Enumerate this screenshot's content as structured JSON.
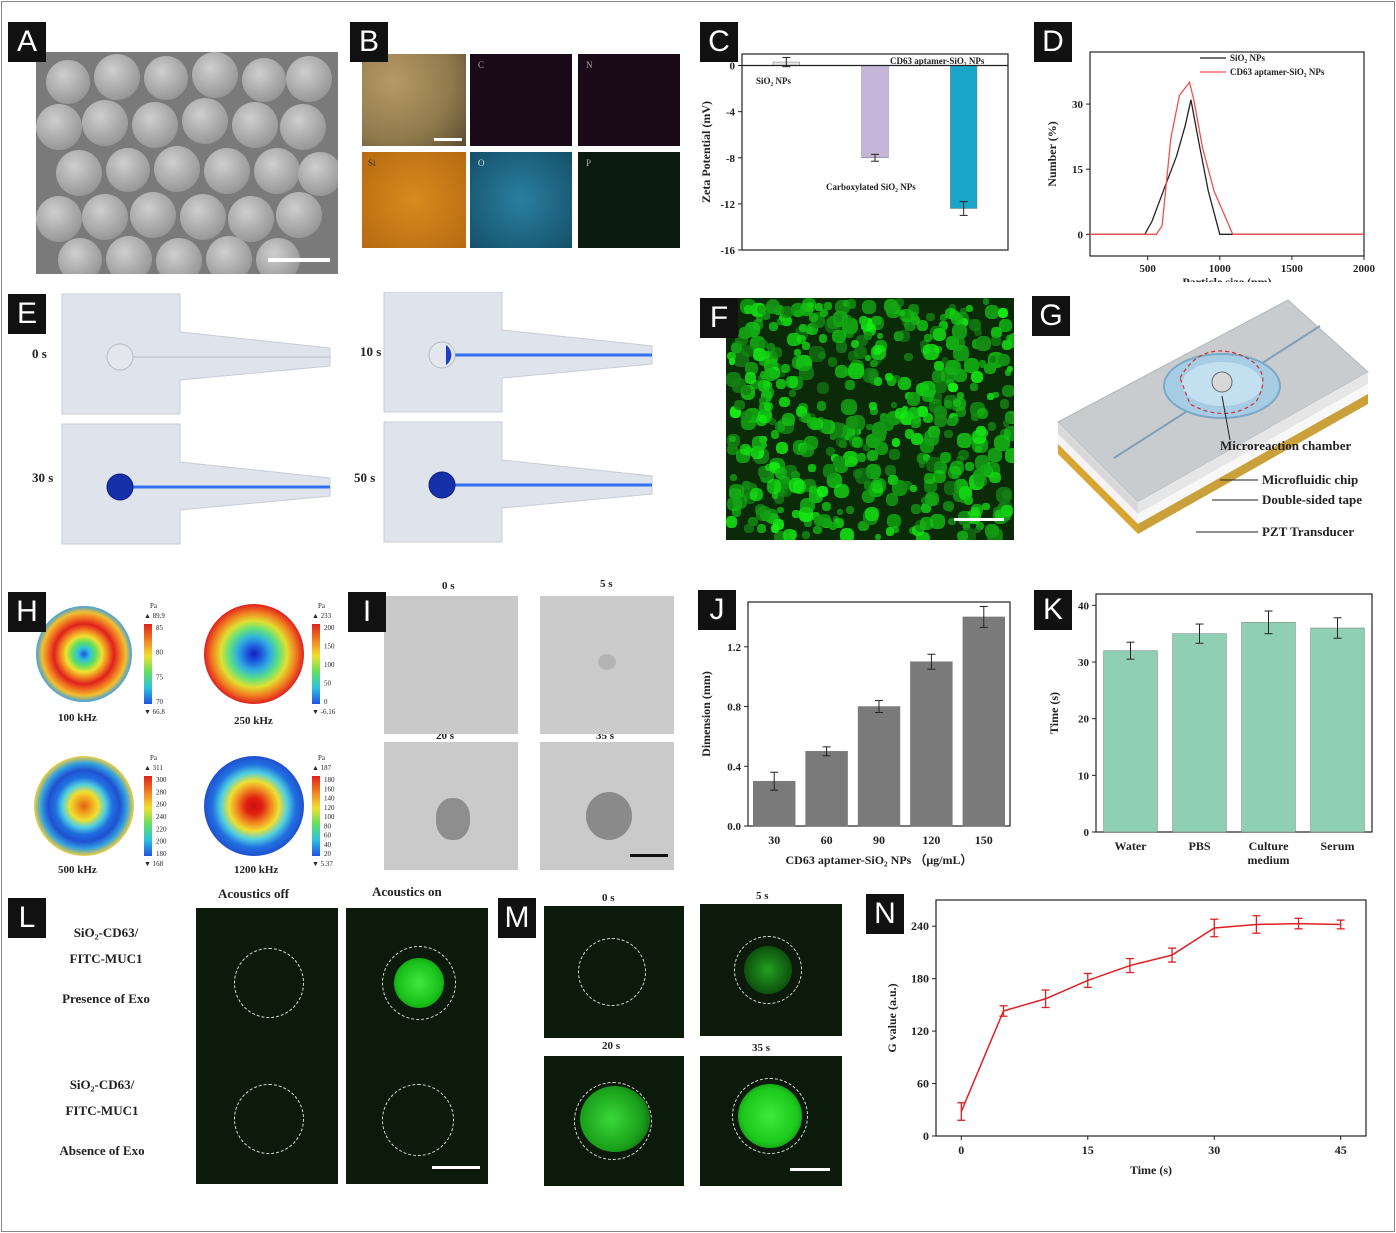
{
  "labels": {
    "A": "A",
    "B": "B",
    "C": "C",
    "D": "D",
    "E": "E",
    "F": "F",
    "G": "G",
    "H": "H",
    "I": "I",
    "J": "J",
    "K": "K",
    "L": "L",
    "M": "M",
    "N": "N"
  },
  "panelB": {
    "tiles": [
      "C",
      "N",
      "Si",
      "O",
      "P"
    ]
  },
  "panelE": {
    "times": [
      "0 s",
      "10 s",
      "30 s",
      "50 s"
    ]
  },
  "panelG": {
    "labels": [
      "Microreaction chamber",
      "Microfluidic chip",
      "Double-sided tape",
      "PZT Transducer"
    ]
  },
  "panelH": {
    "freqs": [
      "100 kHz",
      "250 kHz",
      "500 kHz",
      "1200 kHz"
    ],
    "unit": "Pa",
    "scales": [
      {
        "max": "89.9",
        "ticks": [
          "85",
          "80",
          "75",
          "70"
        ],
        "min": "66.8"
      },
      {
        "max": "233",
        "ticks": [
          "200",
          "150",
          "100",
          "50",
          "0"
        ],
        "min": "-6.16"
      },
      {
        "max": "311",
        "ticks": [
          "300",
          "280",
          "260",
          "240",
          "220",
          "200",
          "180"
        ],
        "min": "168"
      },
      {
        "max": "187",
        "ticks": [
          "180",
          "160",
          "140",
          "120",
          "100",
          "80",
          "60",
          "40",
          "20"
        ],
        "min": "5.37"
      }
    ]
  },
  "panelI": {
    "times": [
      "0 s",
      "5 s",
      "20 s",
      "35 s"
    ]
  },
  "panelL": {
    "col1": "Acoustics off",
    "col2": "Acoustics on",
    "row1": [
      "SiO₂-CD63/",
      "FITC-MUC1",
      "Presence of Exo"
    ],
    "row2": [
      "SiO₂-CD63/",
      "FITC-MUC1",
      "Absence of Exo"
    ]
  },
  "panelM": {
    "times": [
      "0 s",
      "5 s",
      "20 s",
      "35 s"
    ]
  },
  "chart_data": [
    {
      "id": "C",
      "type": "bar",
      "categories": [
        "SiO₂ NPs",
        "Carboxylated SiO₂ NPs",
        "CD63 aptamer-SiO₂ NPs"
      ],
      "values": [
        0.3,
        -8.0,
        -12.4
      ],
      "errors": [
        0.4,
        0.3,
        0.6
      ],
      "ylabel": "Zeta Potential (mV)",
      "ylim": [
        -16,
        1
      ],
      "yticks": [
        "0",
        "-4",
        "-8",
        "-12",
        "-16"
      ],
      "colors": [
        "#e8e8e8",
        "#c7b5d9",
        "#1aa6c8"
      ]
    },
    {
      "id": "D",
      "type": "line",
      "xlabel": "Particle size (nm)",
      "ylabel": "Number (%)",
      "xlim": [
        100,
        2000
      ],
      "ylim": [
        -5,
        42
      ],
      "xticks": [
        "500",
        "1000",
        "1500",
        "2000"
      ],
      "yticks": [
        "0",
        "15",
        "30"
      ],
      "series": [
        {
          "name": "SiO₂ NPs",
          "color": "#222222",
          "x": [
            100,
            480,
            530,
            620,
            700,
            760,
            800,
            850,
            920,
            1000,
            2000
          ],
          "y": [
            0,
            0,
            3,
            11,
            18,
            25,
            31,
            22,
            10,
            0,
            0
          ]
        },
        {
          "name": "CD63 aptamer-SiO₂ NPs",
          "color": "#f05050",
          "x": [
            100,
            560,
            600,
            660,
            720,
            790,
            820,
            880,
            960,
            1090,
            2000
          ],
          "y": [
            0,
            0,
            2,
            22,
            32,
            35,
            31,
            20,
            10,
            0,
            0
          ]
        }
      ]
    },
    {
      "id": "J",
      "type": "bar",
      "categories": [
        "30",
        "60",
        "90",
        "120",
        "150"
      ],
      "values": [
        0.3,
        0.5,
        0.8,
        1.1,
        1.4
      ],
      "errors": [
        0.06,
        0.03,
        0.04,
        0.05,
        0.07
      ],
      "xlabel": "CD63 aptamer-SiO₂ NPs （μg/mL）",
      "ylabel": "Dimension (mm)",
      "ylim": [
        0,
        1.5
      ],
      "yticks": [
        "0.0",
        "0.4",
        "0.8",
        "1.2"
      ],
      "color": "#7a7a7a"
    },
    {
      "id": "K",
      "type": "bar",
      "categories": [
        "Water",
        "PBS",
        "Culture medium",
        "Serum"
      ],
      "values": [
        32,
        35,
        37,
        36
      ],
      "errors": [
        1.5,
        1.7,
        2.0,
        1.8
      ],
      "ylabel": "Time (s)",
      "ylim": [
        0,
        42
      ],
      "yticks": [
        "0",
        "10",
        "20",
        "30",
        "40"
      ],
      "color": "#8fd0b4"
    },
    {
      "id": "N",
      "type": "line",
      "xlabel": "Time (s)",
      "ylabel": "G value (a.u.)",
      "xlim": [
        -3,
        48
      ],
      "ylim": [
        0,
        270
      ],
      "xticks": [
        "0",
        "15",
        "30",
        "45"
      ],
      "yticks": [
        "0",
        "60",
        "120",
        "180",
        "240"
      ],
      "series": [
        {
          "color": "#e02020",
          "x": [
            0,
            5,
            10,
            15,
            20,
            25,
            30,
            35,
            40,
            45
          ],
          "y": [
            28,
            143,
            157,
            178,
            195,
            207,
            238,
            242,
            243,
            242
          ],
          "err": [
            10,
            6,
            10,
            8,
            8,
            8,
            10,
            10,
            6,
            5
          ]
        }
      ]
    }
  ]
}
